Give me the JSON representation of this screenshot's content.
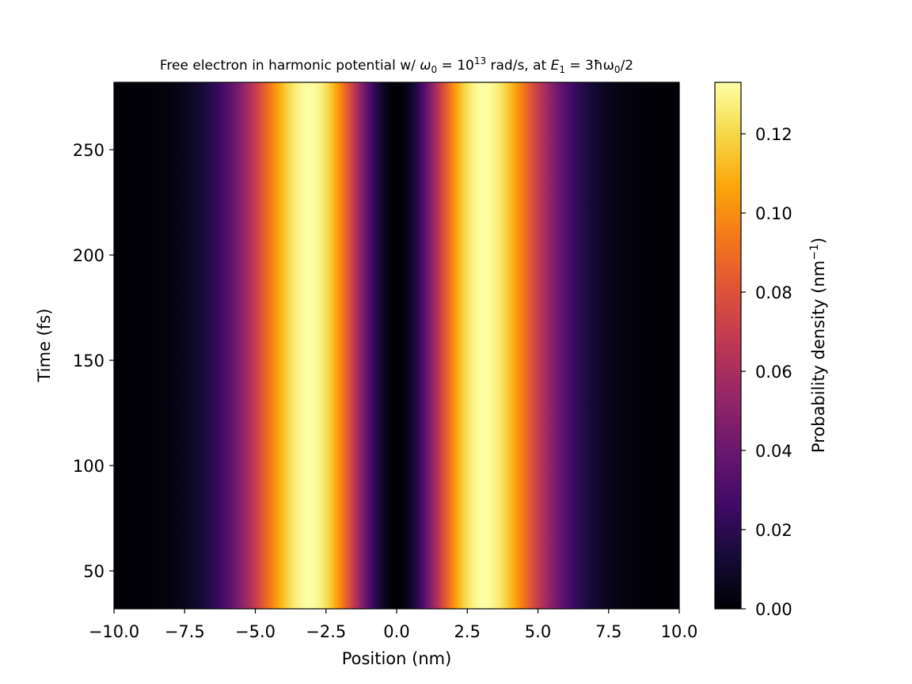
{
  "chart_data": {
    "type": "heatmap",
    "title_parts": {
      "prefix": "Free electron in harmonic potential w/ ",
      "omega": "ω",
      "omega_sub": "0",
      "eq1": " = 10",
      "exp": "13",
      "mid": " rad/s, at ",
      "E": "E",
      "E_sub": "1",
      "eq2": " = 3ħω",
      "omega2_sub": "0",
      "suffix": "/2"
    },
    "xlabel": "Position (nm)",
    "ylabel": "Time (fs)",
    "xlim": [
      -10.0,
      10.0
    ],
    "ylim": [
      32,
      282
    ],
    "x_ticks": [
      -10.0,
      -7.5,
      -5.0,
      -2.5,
      0.0,
      2.5,
      5.0,
      7.5,
      10.0
    ],
    "x_tick_labels": [
      "−10.0",
      "−7.5",
      "−5.0",
      "−2.5",
      "0.0",
      "2.5",
      "5.0",
      "7.5",
      "10.0"
    ],
    "y_ticks": [
      50,
      100,
      150,
      200,
      250
    ],
    "y_tick_labels": [
      "50",
      "100",
      "150",
      "200",
      "250"
    ],
    "colorbar": {
      "label_prefix": "Probability density (nm",
      "label_exp": "−1",
      "label_suffix": ")",
      "range": [
        0.0,
        0.133
      ],
      "ticks": [
        0.0,
        0.02,
        0.04,
        0.06,
        0.08,
        0.1,
        0.12
      ],
      "tick_labels": [
        "0.00",
        "0.02",
        "0.04",
        "0.06",
        "0.08",
        "0.10",
        "0.12"
      ],
      "colormap": "inferno"
    },
    "density": {
      "description_model": "first excited state of harmonic oscillator, stationary in time",
      "peak_positions_nm": [
        -3.1,
        3.1
      ],
      "node_position_nm": 0.0,
      "peak_value": 0.133
    }
  }
}
